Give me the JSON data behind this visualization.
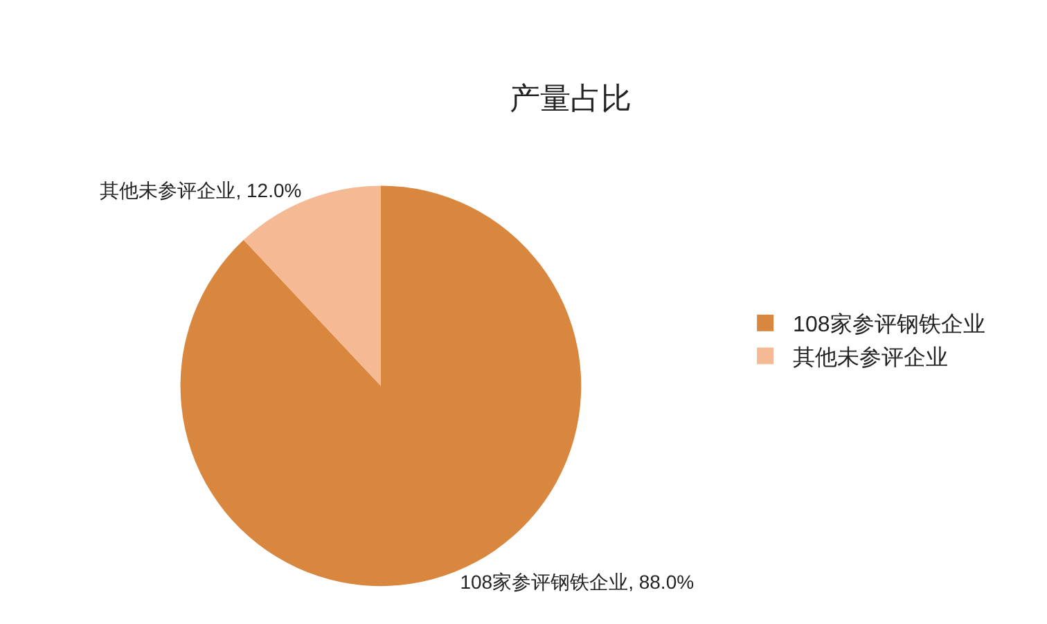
{
  "chart_data": {
    "type": "pie",
    "title": "产量占比",
    "categories": [
      "108家参评钢铁企业",
      "其他未参评企业"
    ],
    "values": [
      88.0,
      12.0
    ],
    "value_labels": [
      "108家参评钢铁企业, 88.0%",
      "其他未参评企业, 12.0%"
    ],
    "colors": [
      "#d9863e",
      "#f5b994"
    ],
    "legend": "right"
  }
}
